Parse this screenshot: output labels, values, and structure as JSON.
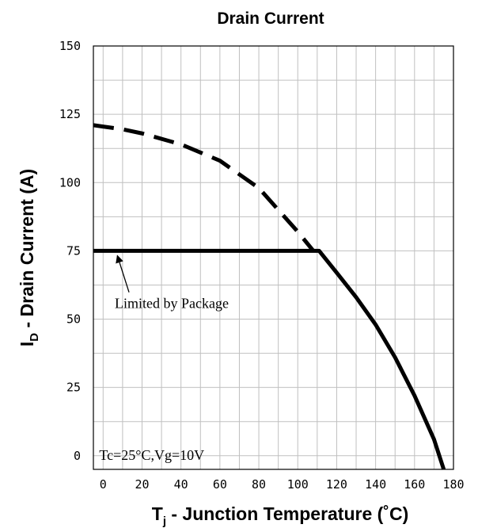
{
  "chart_data": {
    "type": "line",
    "title": "Drain Current",
    "xlabel_main": "T",
    "xlabel_sub": "j",
    "xlabel_rest": " - Junction Temperature (˚C)",
    "ylabel_main": "I",
    "ylabel_sub": "D",
    "ylabel_rest": " - Drain Current (A)",
    "xlim": [
      -5,
      180
    ],
    "ylim": [
      -5,
      150
    ],
    "x_ticks": [
      0,
      20,
      40,
      60,
      80,
      100,
      120,
      140,
      160,
      180
    ],
    "y_ticks": [
      0,
      25,
      50,
      75,
      100,
      125,
      150
    ],
    "grid": true,
    "series": [
      {
        "style": "dashed",
        "x": [
          -5,
          10,
          20,
          40,
          60,
          80,
          100,
          108
        ],
        "y": [
          121,
          119.5,
          118,
          114,
          108,
          98,
          82,
          75
        ]
      },
      {
        "style": "solid",
        "x": [
          -5,
          111,
          120,
          130,
          140,
          150,
          160,
          170,
          175
        ],
        "y": [
          75,
          75,
          67,
          58,
          48,
          36,
          22,
          6,
          -5
        ]
      }
    ],
    "annotations": [
      {
        "text": "Limited by Package",
        "x": 6,
        "y": 54,
        "arrow_to": [
          6.5,
          75
        ]
      },
      {
        "text": "Tc=25°C,Vg=10V",
        "x": -2,
        "y": -1
      }
    ]
  }
}
